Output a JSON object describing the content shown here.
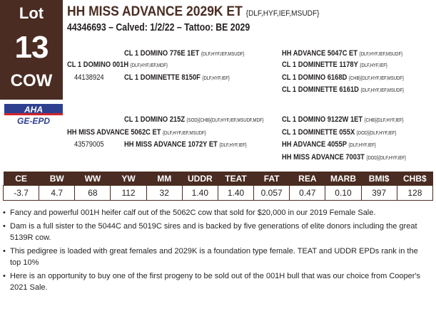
{
  "lot": {
    "label": "Lot",
    "number": "13",
    "sex": "COW"
  },
  "animal": {
    "name": "HH MISS ADVANCE 2029K ET",
    "reg_codes": "{DLF,HYF,IEF,MSUDF}",
    "info": "44346693 – Calved: 1/2/22 – Tattoo: BE 2029"
  },
  "logo": {
    "top": "AHA",
    "bottom": "GE-EPD"
  },
  "pedigree": {
    "sire_sire_sire": {
      "name": "CL 1 DOMINO 776E 1ET",
      "codes": "{DLF,HYF,IEF,MSUDF}"
    },
    "sire": {
      "name": "CL 1 DOMINO 001H",
      "codes": "{DLF,HYF,IEF,MDF}",
      "reg": "44138924"
    },
    "sire_dam": {
      "name": "CL 1 DOMINETTE 8150F",
      "codes": "{DLF,HYF,IEF}"
    },
    "right_top": [
      {
        "name": "HH ADVANCE 5047C ET",
        "codes": "{DLF,HYF,IEF,MSUDF}"
      },
      {
        "name": "CL 1 DOMINETTE 1178Y",
        "codes": "{DLF,HYF,IEF}"
      },
      {
        "name": "CL 1 DOMINO 6168D",
        "codes": "{CHB}{DLF,HYF,IEF,MSUDF}"
      },
      {
        "name": "CL 1 DOMINETTE 6161D",
        "codes": "{DLF,HYF,IEF,MSUDF}"
      }
    ],
    "dam_sire": {
      "name": "CL 1 DOMINO 215Z",
      "codes": "{SOD}{CHB}{DLF,HYF,IEF,MSUDF,MDF}"
    },
    "dam": {
      "name": "HH MISS ADVANCE 5062C ET",
      "codes": "{DLF,HYF,IEF,MSUDF}",
      "reg": "43579005"
    },
    "dam_dam": {
      "name": "HH MISS ADVANCE 1072Y ET",
      "codes": "{DLF,HYF,IEF}"
    },
    "right_bottom": [
      {
        "name": "CL 1 DOMINO 9122W 1ET",
        "codes": "{CHB}{DLF,HYF,IEF}"
      },
      {
        "name": "CL 1 DOMINETTE 055X",
        "codes": "{DOD}{DLF,HYF,IEF}"
      },
      {
        "name": "HH ADVANCE 4055P",
        "codes": "{DLF,HYF,IEF}"
      },
      {
        "name": "HH MISS ADVANCE 7003T",
        "codes": "{DOD}{DLF,HYF,IEF}"
      }
    ]
  },
  "epd": {
    "headers": [
      "CE",
      "BW",
      "WW",
      "YW",
      "MM",
      "UDDR",
      "TEAT",
      "FAT",
      "REA",
      "MARB",
      "BMI$",
      "CHB$"
    ],
    "values": [
      "-3.7",
      "4.7",
      "68",
      "112",
      "32",
      "1.40",
      "1.40",
      "0.057",
      "0.47",
      "0.10",
      "397",
      "128"
    ]
  },
  "notes": [
    "Fancy and powerful 001H heifer calf out of the 5062C cow that sold for $20,000 in our 2019 Female Sale.",
    "Dam is a full sister to the 5044C and 5019C sires and is backed by five generations of elite donors including the great 5139R cow.",
    "This pedigree is loaded with great females and 2029K is a foundation type female. TEAT and UDDR EPDs rank in the top 10%",
    "Here is an opportunity to buy one of the first progeny to be sold out of the 001H bull that was our choice from Cooper's 2021 Sale."
  ],
  "colors": {
    "brand": "#4a2c22",
    "logo_blue": "#2e3f8f",
    "logo_red": "#d3242b"
  }
}
